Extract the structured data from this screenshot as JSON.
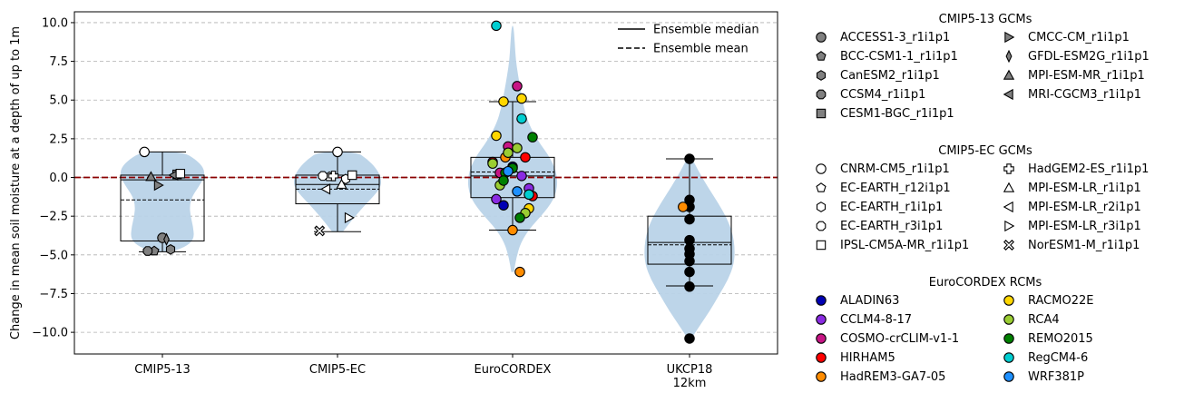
{
  "chart_data": {
    "type": "violin",
    "ylabel": "Change in mean soil moisture at a depth of up to 1m",
    "xlabel": "",
    "ylim": [
      -11.4,
      10.7
    ],
    "yticks": [
      -10.0,
      -7.5,
      -5.0,
      -2.5,
      0.0,
      2.5,
      5.0,
      7.5,
      10.0
    ],
    "ytick_labels": [
      "−10.0",
      "−7.5",
      "−5.0",
      "−2.5",
      "0.0",
      "2.5",
      "5.0",
      "7.5",
      "10.0"
    ],
    "grid": "horizontal dashed",
    "zero_line_color": "#8b0000",
    "violin_color": "#b9d3e8",
    "main_legend_position": "top-right",
    "main_legend": [
      {
        "label": "Ensemble median",
        "style": "solid"
      },
      {
        "label": "Ensemble mean",
        "style": "dashed"
      }
    ],
    "categories": [
      {
        "label": "CMIP5-13",
        "box": {
          "whislo": -4.8,
          "q1": -4.1,
          "median": -0.15,
          "q3": 0.15,
          "whishi": 1.65,
          "mean": -1.45
        },
        "violin": {
          "min": -4.8,
          "max": 1.65,
          "profile": [
            [
              -4.8,
              0.18
            ],
            [
              -4.5,
              0.5
            ],
            [
              -4.0,
              0.7
            ],
            [
              -3.2,
              0.68
            ],
            [
              -2.5,
              0.62
            ],
            [
              -1.8,
              0.6
            ],
            [
              -1.2,
              0.66
            ],
            [
              -0.6,
              0.8
            ],
            [
              0.0,
              0.92
            ],
            [
              0.6,
              0.92
            ],
            [
              1.2,
              0.72
            ],
            [
              1.65,
              0.45
            ]
          ]
        },
        "points": [
          {
            "name": "ACCESS1-3_r1i1p1",
            "value": -3.9
          },
          {
            "name": "BCC-CSM1-1_r1i1p1",
            "value": -4.75
          },
          {
            "name": "CanESM2_r1i1p1",
            "value": -4.65
          },
          {
            "name": "CCSM4_r1i1p1",
            "value": -4.75
          },
          {
            "name": "CESM1-BGC_r1i1p1",
            "value": 0.2
          },
          {
            "name": "CMCC-CM_r1i1p1",
            "value": -0.5
          },
          {
            "name": "GFDL-ESM2G_r1i1p1",
            "value": -4.0
          },
          {
            "name": "MPI-ESM-MR_r1i1p1",
            "value": 0.05
          },
          {
            "name": "MRI-CGCM3_r1i1p1",
            "value": 0.15
          },
          {
            "name": "CNRM-CM5_r1i1p1",
            "value": 1.65
          },
          {
            "name": "IPSL-CM5A-MR_r1i1p1",
            "value": 0.25
          }
        ]
      },
      {
        "label": "CMIP5-EC",
        "box": {
          "whislo": -3.5,
          "q1": -1.7,
          "median": -0.45,
          "q3": 0.15,
          "whishi": 1.65,
          "mean": -0.75
        },
        "violin": {
          "min": -3.5,
          "max": 1.65,
          "profile": [
            [
              -3.5,
              0.12
            ],
            [
              -3.0,
              0.25
            ],
            [
              -2.4,
              0.42
            ],
            [
              -1.8,
              0.6
            ],
            [
              -1.2,
              0.8
            ],
            [
              -0.6,
              0.96
            ],
            [
              0.0,
              0.96
            ],
            [
              0.6,
              0.85
            ],
            [
              1.2,
              0.65
            ],
            [
              1.65,
              0.42
            ]
          ]
        },
        "points": [
          {
            "name": "CNRM-CM5_r1i1p1",
            "value": 1.65
          },
          {
            "name": "EC-EARTH_r12i1p1",
            "value": 0.05
          },
          {
            "name": "EC-EARTH_r1i1p1",
            "value": -0.1
          },
          {
            "name": "EC-EARTH_r3i1p1",
            "value": 0.1
          },
          {
            "name": "IPSL-CM5A-MR_r1i1p1",
            "value": 0.15
          },
          {
            "name": "HadGEM2-ES_r1i1p1",
            "value": 0.1
          },
          {
            "name": "MPI-ESM-LR_r1i1p1",
            "value": -0.45
          },
          {
            "name": "MPI-ESM-LR_r2i1p1",
            "value": -0.75
          },
          {
            "name": "MPI-ESM-LR_r3i1p1",
            "value": -2.6
          },
          {
            "name": "NorESM1-M_r1i1p1",
            "value": -3.45
          }
        ]
      },
      {
        "label": "EuroCORDEX",
        "box": {
          "whislo": -3.4,
          "q1": -1.3,
          "median": 0.1,
          "q3": 1.3,
          "whishi": 4.9,
          "mean": 0.35
        },
        "violin": {
          "min": -6.1,
          "max": 9.8,
          "profile": [
            [
              -6.1,
              0.03
            ],
            [
              -5.2,
              0.08
            ],
            [
              -4.2,
              0.18
            ],
            [
              -3.2,
              0.4
            ],
            [
              -2.2,
              0.72
            ],
            [
              -1.2,
              0.95
            ],
            [
              0.0,
              1.0
            ],
            [
              1.2,
              0.85
            ],
            [
              2.4,
              0.55
            ],
            [
              3.5,
              0.35
            ],
            [
              4.5,
              0.25
            ],
            [
              5.6,
              0.18
            ],
            [
              6.6,
              0.12
            ],
            [
              7.6,
              0.07
            ],
            [
              8.6,
              0.05
            ],
            [
              9.8,
              0.02
            ]
          ]
        },
        "points": [
          {
            "name": "ALADIN63",
            "value": 0.7
          },
          {
            "name": "ALADIN63",
            "value": -1.8
          },
          {
            "name": "CCLM4-8-17",
            "value": 0.1
          },
          {
            "name": "CCLM4-8-17",
            "value": -1.4
          },
          {
            "name": "CCLM4-8-17",
            "value": -0.7
          },
          {
            "name": "COSMO-crCLIM-v1-1",
            "value": 2.0
          },
          {
            "name": "COSMO-crCLIM-v1-1",
            "value": 5.9
          },
          {
            "name": "COSMO-crCLIM-v1-1",
            "value": 0.3
          },
          {
            "name": "HIRHAM5",
            "value": 1.3
          },
          {
            "name": "HIRHAM5",
            "value": 1.0
          },
          {
            "name": "HIRHAM5",
            "value": -1.2
          },
          {
            "name": "HadREM3-GA7-05",
            "value": 1.3
          },
          {
            "name": "HadREM3-GA7-05",
            "value": -6.1
          },
          {
            "name": "HadREM3-GA7-05",
            "value": -3.4
          },
          {
            "name": "RACMO22E",
            "value": 4.9
          },
          {
            "name": "RACMO22E",
            "value": 5.1
          },
          {
            "name": "RACMO22E",
            "value": 2.7
          },
          {
            "name": "RACMO22E",
            "value": -2.0
          },
          {
            "name": "RCA4",
            "value": 1.6
          },
          {
            "name": "RCA4",
            "value": 1.9
          },
          {
            "name": "RCA4",
            "value": -0.5
          },
          {
            "name": "RCA4",
            "value": -2.3
          },
          {
            "name": "RCA4",
            "value": 0.9
          },
          {
            "name": "REMO2015",
            "value": 2.6
          },
          {
            "name": "REMO2015",
            "value": 0.3
          },
          {
            "name": "REMO2015",
            "value": -2.6
          },
          {
            "name": "REMO2015",
            "value": 0.6
          },
          {
            "name": "REMO2015",
            "value": -0.2
          },
          {
            "name": "RegCM4-6",
            "value": 3.8
          },
          {
            "name": "RegCM4-6",
            "value": 9.8
          },
          {
            "name": "RegCM4-6",
            "value": -1.1
          },
          {
            "name": "WRF381P",
            "value": 0.4
          },
          {
            "name": "WRF381P",
            "value": -0.9
          }
        ]
      },
      {
        "label": "UKCP18\n12km",
        "box": {
          "whislo": -7.0,
          "q1": -5.6,
          "median": -4.2,
          "q3": -2.5,
          "whishi": 1.2,
          "mean": -4.35
        },
        "violin": {
          "min": -10.4,
          "max": 1.2,
          "profile": [
            [
              -10.4,
              0.04
            ],
            [
              -9.6,
              0.22
            ],
            [
              -8.6,
              0.45
            ],
            [
              -7.6,
              0.65
            ],
            [
              -6.6,
              0.85
            ],
            [
              -5.6,
              0.98
            ],
            [
              -4.6,
              1.0
            ],
            [
              -3.6,
              0.95
            ],
            [
              -2.6,
              0.82
            ],
            [
              -1.6,
              0.62
            ],
            [
              -0.6,
              0.4
            ],
            [
              0.4,
              0.2
            ],
            [
              1.2,
              0.06
            ]
          ]
        },
        "points": [
          {
            "name": "UKCP18",
            "value": 1.2
          },
          {
            "name": "UKCP18",
            "value": -1.45
          },
          {
            "name": "UKCP18",
            "value": -1.9
          },
          {
            "name": "UKCP18",
            "value": -2.7
          },
          {
            "name": "UKCP18",
            "value": -4.05
          },
          {
            "name": "UKCP18",
            "value": -4.6
          },
          {
            "name": "UKCP18",
            "value": -4.95
          },
          {
            "name": "UKCP18",
            "value": -5.4
          },
          {
            "name": "UKCP18",
            "value": -6.1
          },
          {
            "name": "UKCP18",
            "value": -7.05
          },
          {
            "name": "UKCP18",
            "value": -10.4
          },
          {
            "name": "HadREM3-GA7-05",
            "value": -1.9
          }
        ]
      }
    ],
    "legend_groups": [
      {
        "title": "CMIP5-13 GCMs",
        "filled": true,
        "items": [
          {
            "label": "ACCESS1-3_r1i1p1",
            "marker": "circle"
          },
          {
            "label": "BCC-CSM1-1_r1i1p1",
            "marker": "pentagon"
          },
          {
            "label": "CanESM2_r1i1p1",
            "marker": "hexagon"
          },
          {
            "label": "CCSM4_r1i1p1",
            "marker": "octagon"
          },
          {
            "label": "CESM1-BGC_r1i1p1",
            "marker": "square"
          },
          {
            "label": "CMCC-CM_r1i1p1",
            "marker": "triangle-right"
          },
          {
            "label": "GFDL-ESM2G_r1i1p1",
            "marker": "thin-diamond"
          },
          {
            "label": "MPI-ESM-MR_r1i1p1",
            "marker": "triangle-up"
          },
          {
            "label": "MRI-CGCM3_r1i1p1",
            "marker": "triangle-left"
          }
        ]
      },
      {
        "title": "CMIP5-EC GCMs",
        "filled": false,
        "items": [
          {
            "label": "CNRM-CM5_r1i1p1",
            "marker": "circle"
          },
          {
            "label": "EC-EARTH_r12i1p1",
            "marker": "pentagon"
          },
          {
            "label": "EC-EARTH_r1i1p1",
            "marker": "hexagon"
          },
          {
            "label": "EC-EARTH_r3i1p1",
            "marker": "octagon"
          },
          {
            "label": "IPSL-CM5A-MR_r1i1p1",
            "marker": "square"
          },
          {
            "label": "HadGEM2-ES_r1i1p1",
            "marker": "plus"
          },
          {
            "label": "MPI-ESM-LR_r1i1p1",
            "marker": "triangle-up"
          },
          {
            "label": "MPI-ESM-LR_r2i1p1",
            "marker": "triangle-left"
          },
          {
            "label": "MPI-ESM-LR_r3i1p1",
            "marker": "triangle-right"
          },
          {
            "label": "NorESM1-M_r1i1p1",
            "marker": "x"
          }
        ]
      },
      {
        "title": "EuroCORDEX RCMs",
        "filled": true,
        "items": [
          {
            "label": "ALADIN63",
            "marker": "circle"
          },
          {
            "label": "CCLM4-8-17",
            "marker": "circle"
          },
          {
            "label": "COSMO-crCLIM-v1-1",
            "marker": "circle"
          },
          {
            "label": "HIRHAM5",
            "marker": "circle"
          },
          {
            "label": "HadREM3-GA7-05",
            "marker": "circle"
          },
          {
            "label": "RACMO22E",
            "marker": "circle"
          },
          {
            "label": "RCA4",
            "marker": "circle"
          },
          {
            "label": "REMO2015",
            "marker": "circle"
          },
          {
            "label": "RegCM4-6",
            "marker": "circle"
          },
          {
            "label": "WRF381P",
            "marker": "circle"
          }
        ]
      }
    ],
    "model_styles": {
      "ACCESS1-3_r1i1p1": {
        "marker": "circle",
        "fill": "#808080"
      },
      "BCC-CSM1-1_r1i1p1": {
        "marker": "pentagon",
        "fill": "#808080"
      },
      "CanESM2_r1i1p1": {
        "marker": "hexagon",
        "fill": "#808080"
      },
      "CCSM4_r1i1p1": {
        "marker": "octagon",
        "fill": "#808080"
      },
      "CESM1-BGC_r1i1p1": {
        "marker": "square",
        "fill": "#808080"
      },
      "CMCC-CM_r1i1p1": {
        "marker": "triangle-right",
        "fill": "#808080"
      },
      "GFDL-ESM2G_r1i1p1": {
        "marker": "thin-diamond",
        "fill": "#808080"
      },
      "MPI-ESM-MR_r1i1p1": {
        "marker": "triangle-up",
        "fill": "#808080"
      },
      "MRI-CGCM3_r1i1p1": {
        "marker": "triangle-left",
        "fill": "#808080"
      },
      "CNRM-CM5_r1i1p1": {
        "marker": "circle",
        "fill": "#ffffff"
      },
      "EC-EARTH_r12i1p1": {
        "marker": "pentagon",
        "fill": "#ffffff"
      },
      "EC-EARTH_r1i1p1": {
        "marker": "hexagon",
        "fill": "#ffffff"
      },
      "EC-EARTH_r3i1p1": {
        "marker": "octagon",
        "fill": "#ffffff"
      },
      "IPSL-CM5A-MR_r1i1p1": {
        "marker": "square",
        "fill": "#ffffff"
      },
      "HadGEM2-ES_r1i1p1": {
        "marker": "plus",
        "fill": "#ffffff"
      },
      "MPI-ESM-LR_r1i1p1": {
        "marker": "triangle-up",
        "fill": "#ffffff"
      },
      "MPI-ESM-LR_r2i1p1": {
        "marker": "triangle-left",
        "fill": "#ffffff"
      },
      "MPI-ESM-LR_r3i1p1": {
        "marker": "triangle-right",
        "fill": "#ffffff"
      },
      "NorESM1-M_r1i1p1": {
        "marker": "x",
        "fill": "#ffffff"
      },
      "ALADIN63": {
        "marker": "circle",
        "fill": "#0000b4"
      },
      "CCLM4-8-17": {
        "marker": "circle",
        "fill": "#8a2be2"
      },
      "COSMO-crCLIM-v1-1": {
        "marker": "circle",
        "fill": "#c71585"
      },
      "HIRHAM5": {
        "marker": "circle",
        "fill": "#ff0000"
      },
      "HadREM3-GA7-05": {
        "marker": "circle",
        "fill": "#ff8c00"
      },
      "RACMO22E": {
        "marker": "circle",
        "fill": "#ffd700"
      },
      "RCA4": {
        "marker": "circle",
        "fill": "#9acd32"
      },
      "REMO2015": {
        "marker": "circle",
        "fill": "#008000"
      },
      "RegCM4-6": {
        "marker": "circle",
        "fill": "#00ced1"
      },
      "WRF381P": {
        "marker": "circle",
        "fill": "#1e90ff"
      },
      "UKCP18": {
        "marker": "circle",
        "fill": "#000000"
      }
    }
  }
}
